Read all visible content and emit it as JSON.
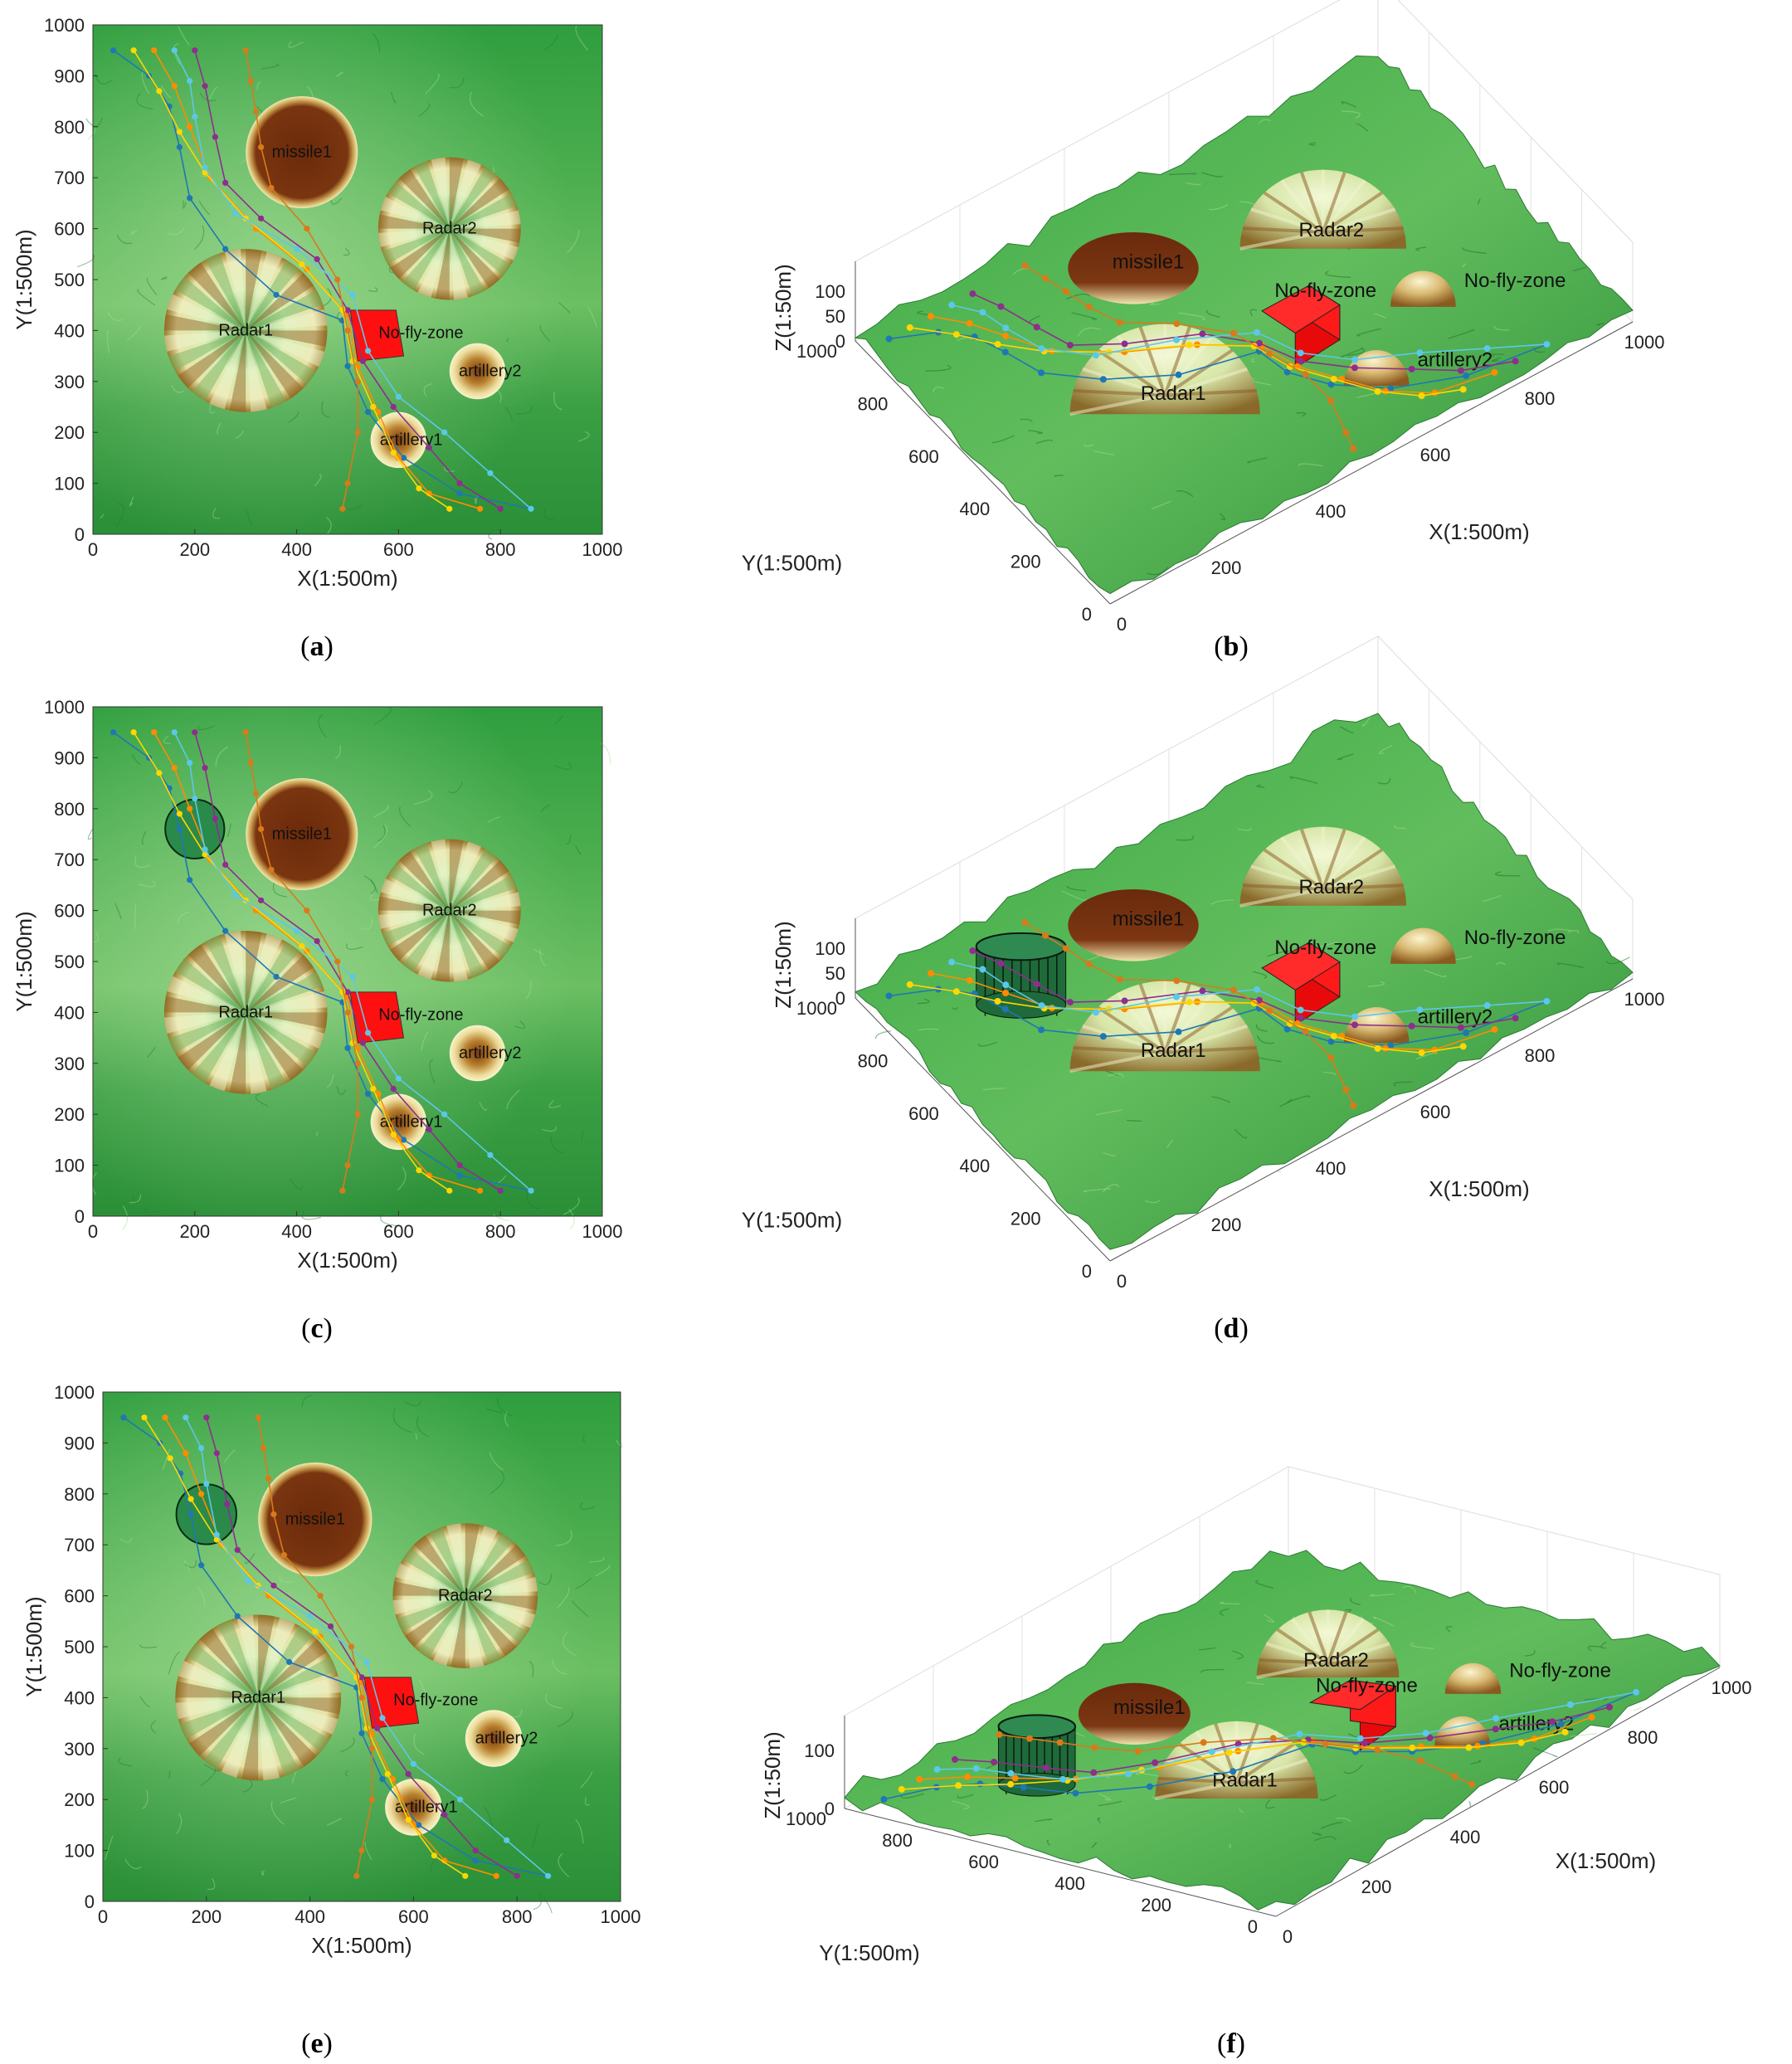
{
  "chart_data": [
    {
      "panel": "a",
      "type": "scatter",
      "view": "2d",
      "xlabel": "X(1:500m)",
      "ylabel": "Y(1:500m)",
      "xlim": [
        0,
        1000
      ],
      "ylim": [
        0,
        1000
      ],
      "xticks": [
        "0",
        "200",
        "400",
        "600",
        "800",
        "1000"
      ],
      "yticks": [
        "0",
        "100",
        "200",
        "300",
        "400",
        "500",
        "600",
        "700",
        "800",
        "900",
        "1000"
      ],
      "threats": [
        {
          "label": "missile1",
          "kind": "missile",
          "x": 410,
          "y": 750,
          "r": 110
        },
        {
          "label": "Radar2",
          "kind": "radar",
          "x": 700,
          "y": 600,
          "r": 140
        },
        {
          "label": "Radar1",
          "kind": "radar",
          "x": 300,
          "y": 400,
          "r": 160
        },
        {
          "label": "artillery2",
          "kind": "artillery",
          "x": 755,
          "y": 320,
          "r": 55
        },
        {
          "label": "artillery1",
          "kind": "artillery",
          "x": 600,
          "y": 185,
          "r": 55
        }
      ],
      "no_fly_zone": {
        "label": "No-fly-zone",
        "corners": [
          [
            505,
            440
          ],
          [
            595,
            440
          ],
          [
            610,
            350
          ],
          [
            520,
            340
          ]
        ]
      },
      "obstacle": null
    },
    {
      "panel": "b",
      "type": "scatter",
      "view": "3d",
      "xlabel": "X(1:500m)",
      "ylabel": "Y(1:500m)",
      "zlabel": "Z(1:50m)",
      "xticks": [
        "0",
        "200",
        "400",
        "600",
        "800",
        "1000"
      ],
      "yticks": [
        "0",
        "200",
        "400",
        "600",
        "800",
        "1000"
      ],
      "zticks": [
        "0",
        "50",
        "100"
      ],
      "labels": [
        "missile1",
        "Radar2",
        "Radar1",
        "No-fly-zone",
        "artillery2",
        "artillery1"
      ],
      "obstacle": false
    },
    {
      "panel": "c",
      "type": "scatter",
      "view": "2d",
      "xlabel": "X(1:500m)",
      "ylabel": "Y(1:500m)",
      "xlim": [
        0,
        1000
      ],
      "ylim": [
        0,
        1000
      ],
      "xticks": [
        "0",
        "200",
        "400",
        "600",
        "800",
        "1000"
      ],
      "yticks": [
        "0",
        "100",
        "200",
        "300",
        "400",
        "500",
        "600",
        "700",
        "800",
        "900",
        "1000"
      ],
      "threats": [
        {
          "label": "missile1",
          "kind": "missile",
          "x": 410,
          "y": 750,
          "r": 110
        },
        {
          "label": "Radar2",
          "kind": "radar",
          "x": 700,
          "y": 600,
          "r": 140
        },
        {
          "label": "Radar1",
          "kind": "radar",
          "x": 300,
          "y": 400,
          "r": 160
        },
        {
          "label": "artillery2",
          "kind": "artillery",
          "x": 755,
          "y": 320,
          "r": 55
        },
        {
          "label": "artillery1",
          "kind": "artillery",
          "x": 600,
          "y": 185,
          "r": 55
        }
      ],
      "no_fly_zone": {
        "label": "No-fly-zone",
        "corners": [
          [
            505,
            440
          ],
          [
            595,
            440
          ],
          [
            610,
            350
          ],
          [
            520,
            340
          ]
        ]
      },
      "obstacle": {
        "x": 200,
        "y": 760,
        "r": 58
      }
    },
    {
      "panel": "d",
      "type": "scatter",
      "view": "3d",
      "xlabel": "X(1:500m)",
      "ylabel": "Y(1:500m)",
      "zlabel": "Z(1:50m)",
      "xticks": [
        "0",
        "200",
        "400",
        "600",
        "800",
        "1000"
      ],
      "yticks": [
        "0",
        "200",
        "400",
        "600",
        "800",
        "1000"
      ],
      "zticks": [
        "0",
        "50",
        "100"
      ],
      "labels": [
        "missile1",
        "Radar2",
        "Radar1",
        "No-fly-zone",
        "artillery2",
        "artillery1"
      ],
      "obstacle": true
    },
    {
      "panel": "e",
      "type": "scatter",
      "view": "2d",
      "xlabel": "X(1:500m)",
      "ylabel": "Y(1:500m)",
      "xlim": [
        0,
        1000
      ],
      "ylim": [
        0,
        1000
      ],
      "xticks": [
        "0",
        "200",
        "400",
        "600",
        "800",
        "1000"
      ],
      "yticks": [
        "0",
        "100",
        "200",
        "300",
        "400",
        "500",
        "600",
        "700",
        "800",
        "900",
        "1000"
      ],
      "threats": [
        {
          "label": "missile1",
          "kind": "missile",
          "x": 410,
          "y": 750,
          "r": 110
        },
        {
          "label": "Radar2",
          "kind": "radar",
          "x": 700,
          "y": 600,
          "r": 140
        },
        {
          "label": "Radar1",
          "kind": "radar",
          "x": 300,
          "y": 400,
          "r": 160
        },
        {
          "label": "artillery2",
          "kind": "artillery",
          "x": 755,
          "y": 320,
          "r": 55
        },
        {
          "label": "artillery1",
          "kind": "artillery",
          "x": 600,
          "y": 185,
          "r": 55
        }
      ],
      "no_fly_zone": {
        "label": "No-fly-zone",
        "corners": [
          [
            505,
            440
          ],
          [
            595,
            440
          ],
          [
            610,
            350
          ],
          [
            520,
            340
          ]
        ]
      },
      "obstacle": {
        "x": 200,
        "y": 760,
        "r": 58
      }
    },
    {
      "panel": "f",
      "type": "scatter",
      "view": "3d",
      "xlabel": "X(1:500m)",
      "ylabel": "Y(1:500m)",
      "zlabel": "Z(1:50m)",
      "xticks": [
        "0",
        "200",
        "400",
        "600",
        "800",
        "1000"
      ],
      "yticks": [
        "0",
        "200",
        "400",
        "600",
        "800",
        "1000"
      ],
      "zticks": [
        "0",
        "100"
      ],
      "labels": [
        "missile1",
        "Radar2",
        "Radar1",
        "No-fly-zone",
        "artillery2",
        "artillery1"
      ],
      "obstacle": true
    }
  ],
  "paths": [
    {
      "color": "#1f77b4",
      "pts": [
        [
          40,
          950
        ],
        [
          110,
          900
        ],
        [
          150,
          840
        ],
        [
          170,
          760
        ],
        [
          190,
          660
        ],
        [
          260,
          560
        ],
        [
          360,
          470
        ],
        [
          490,
          420
        ],
        [
          500,
          330
        ],
        [
          540,
          240
        ],
        [
          610,
          150
        ],
        [
          720,
          80
        ],
        [
          860,
          50
        ]
      ]
    },
    {
      "color": "#ff8c00",
      "pts": [
        [
          120,
          950
        ],
        [
          160,
          880
        ],
        [
          190,
          800
        ],
        [
          230,
          700
        ],
        [
          320,
          600
        ],
        [
          420,
          520
        ],
        [
          500,
          430
        ],
        [
          520,
          330
        ],
        [
          560,
          240
        ],
        [
          600,
          150
        ],
        [
          660,
          80
        ],
        [
          760,
          50
        ]
      ]
    },
    {
      "color": "#8e2e8e",
      "pts": [
        [
          200,
          950
        ],
        [
          220,
          880
        ],
        [
          240,
          780
        ],
        [
          260,
          690
        ],
        [
          330,
          620
        ],
        [
          440,
          540
        ],
        [
          500,
          440
        ],
        [
          530,
          340
        ],
        [
          590,
          250
        ],
        [
          660,
          170
        ],
        [
          720,
          100
        ],
        [
          800,
          50
        ]
      ]
    },
    {
      "color": "#ffd700",
      "pts": [
        [
          80,
          950
        ],
        [
          130,
          870
        ],
        [
          170,
          790
        ],
        [
          220,
          710
        ],
        [
          300,
          620
        ],
        [
          410,
          530
        ],
        [
          490,
          440
        ],
        [
          510,
          340
        ],
        [
          550,
          250
        ],
        [
          590,
          160
        ],
        [
          640,
          90
        ],
        [
          700,
          50
        ]
      ]
    },
    {
      "color": "#5cc8e8",
      "pts": [
        [
          160,
          950
        ],
        [
          190,
          890
        ],
        [
          200,
          820
        ],
        [
          220,
          720
        ],
        [
          280,
          630
        ],
        [
          400,
          560
        ],
        [
          510,
          470
        ],
        [
          540,
          360
        ],
        [
          600,
          270
        ],
        [
          690,
          200
        ],
        [
          780,
          120
        ],
        [
          860,
          50
        ]
      ]
    },
    {
      "color": "#d97a1a",
      "pts": [
        [
          300,
          950
        ],
        [
          310,
          890
        ],
        [
          320,
          830
        ],
        [
          330,
          760
        ],
        [
          350,
          680
        ],
        [
          420,
          600
        ],
        [
          480,
          500
        ],
        [
          500,
          400
        ],
        [
          520,
          300
        ],
        [
          520,
          200
        ],
        [
          500,
          100
        ],
        [
          490,
          50
        ]
      ]
    }
  ],
  "captions": [
    "(a)",
    "(b)",
    "(c)",
    "(d)",
    "(e)",
    "(f)"
  ]
}
